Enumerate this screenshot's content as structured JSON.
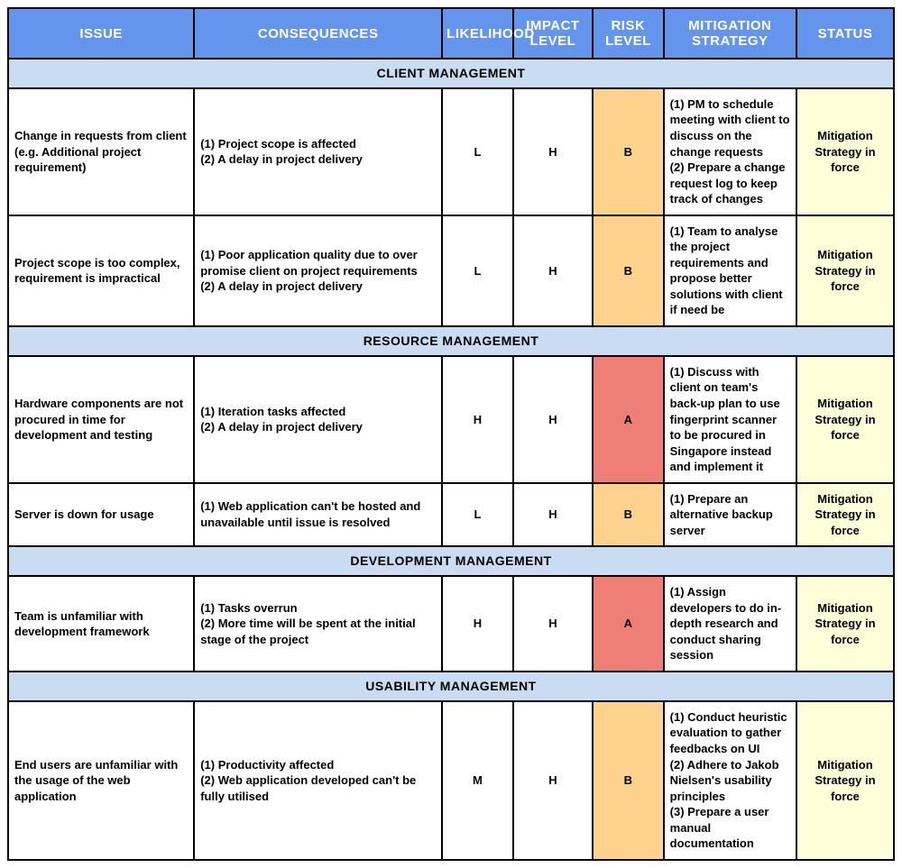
{
  "colors": {
    "header_bg": "#6495ed",
    "header_text": "#ffffff",
    "section_bg": "#c9dcf2",
    "risk_b_bg": "#fcd28d",
    "risk_a_bg": "#ef7f76",
    "status_bg": "#feffd8",
    "border": "#000000",
    "body_bg": "#ffffff"
  },
  "typography": {
    "header_font": "Arial Narrow",
    "body_font": "Arial",
    "header_fontsize": 15,
    "cell_fontsize": 13,
    "section_fontsize": 14
  },
  "columns": [
    {
      "label": "Issue",
      "width_pct": 21
    },
    {
      "label": "Consequences",
      "width_pct": 28
    },
    {
      "label": "Likelihood",
      "width_pct": 8
    },
    {
      "label": "Impact Level",
      "width_pct": 9
    },
    {
      "label": "Risk Level",
      "width_pct": 8
    },
    {
      "label": "Mitigation Strategy",
      "width_pct": 15
    },
    {
      "label": "Status",
      "width_pct": 11
    }
  ],
  "sections": [
    {
      "title": "Client Management",
      "rows": [
        {
          "issue": "Change in requests from client (e.g. Additional project requirement)",
          "consequences": "(1) Project scope is affected\n(2) A delay in project delivery",
          "likelihood": "L",
          "impact": "H",
          "risk": "B",
          "risk_class": "risk-b",
          "mitigation": "(1) PM to schedule meeting with client to discuss on the change requests\n(2) Prepare a change request log to keep track of changes",
          "status": "Mitigation Strategy in force"
        },
        {
          "issue": "Project scope is too complex, requirement is impractical",
          "consequences": "(1) Poor application quality due to over promise client on project requirements\n(2) A delay in project delivery",
          "likelihood": "L",
          "impact": "H",
          "risk": "B",
          "risk_class": "risk-b",
          "mitigation": "(1) Team to analyse the project requirements and propose better solutions with client if need be",
          "status": "Mitigation Strategy in force"
        }
      ]
    },
    {
      "title": "Resource Management",
      "rows": [
        {
          "issue": "Hardware components are not procured in time for development and testing",
          "consequences": "(1) Iteration tasks affected\n(2) A delay in project delivery",
          "likelihood": "H",
          "impact": "H",
          "risk": "A",
          "risk_class": "risk-a",
          "mitigation": "(1) Discuss with client on team's back-up plan to use fingerprint scanner to be procured in Singapore instead and implement it",
          "status": "Mitigation Strategy in force"
        },
        {
          "issue": "Server is down for usage",
          "consequences": "(1) Web application can't be hosted and unavailable until issue is resolved",
          "likelihood": "L",
          "impact": "H",
          "risk": "B",
          "risk_class": "risk-b",
          "mitigation": "(1) Prepare an alternative backup server",
          "status": "Mitigation Strategy in force"
        }
      ]
    },
    {
      "title": "Development Management",
      "rows": [
        {
          "issue": "Team is unfamiliar with development framework",
          "consequences": "(1) Tasks overrun\n(2) More time will be spent at the initial stage of the project",
          "likelihood": "H",
          "impact": "H",
          "risk": "A",
          "risk_class": "risk-a",
          "mitigation": "(1) Assign developers to do in-depth research and conduct sharing session",
          "status": "Mitigation Strategy in force"
        }
      ]
    },
    {
      "title": "Usability Management",
      "rows": [
        {
          "issue": "End users are unfamiliar with the usage of the web application",
          "consequences": "(1) Productivity affected\n(2) Web application developed can't be fully utilised",
          "likelihood": "M",
          "impact": "H",
          "risk": "B",
          "risk_class": "risk-b",
          "mitigation": "(1) Conduct heuristic evaluation to gather feedbacks on UI\n(2) Adhere to Jakob Nielsen's usability principles\n(3) Prepare a user manual documentation",
          "status": "Mitigation Strategy in force"
        }
      ]
    }
  ]
}
